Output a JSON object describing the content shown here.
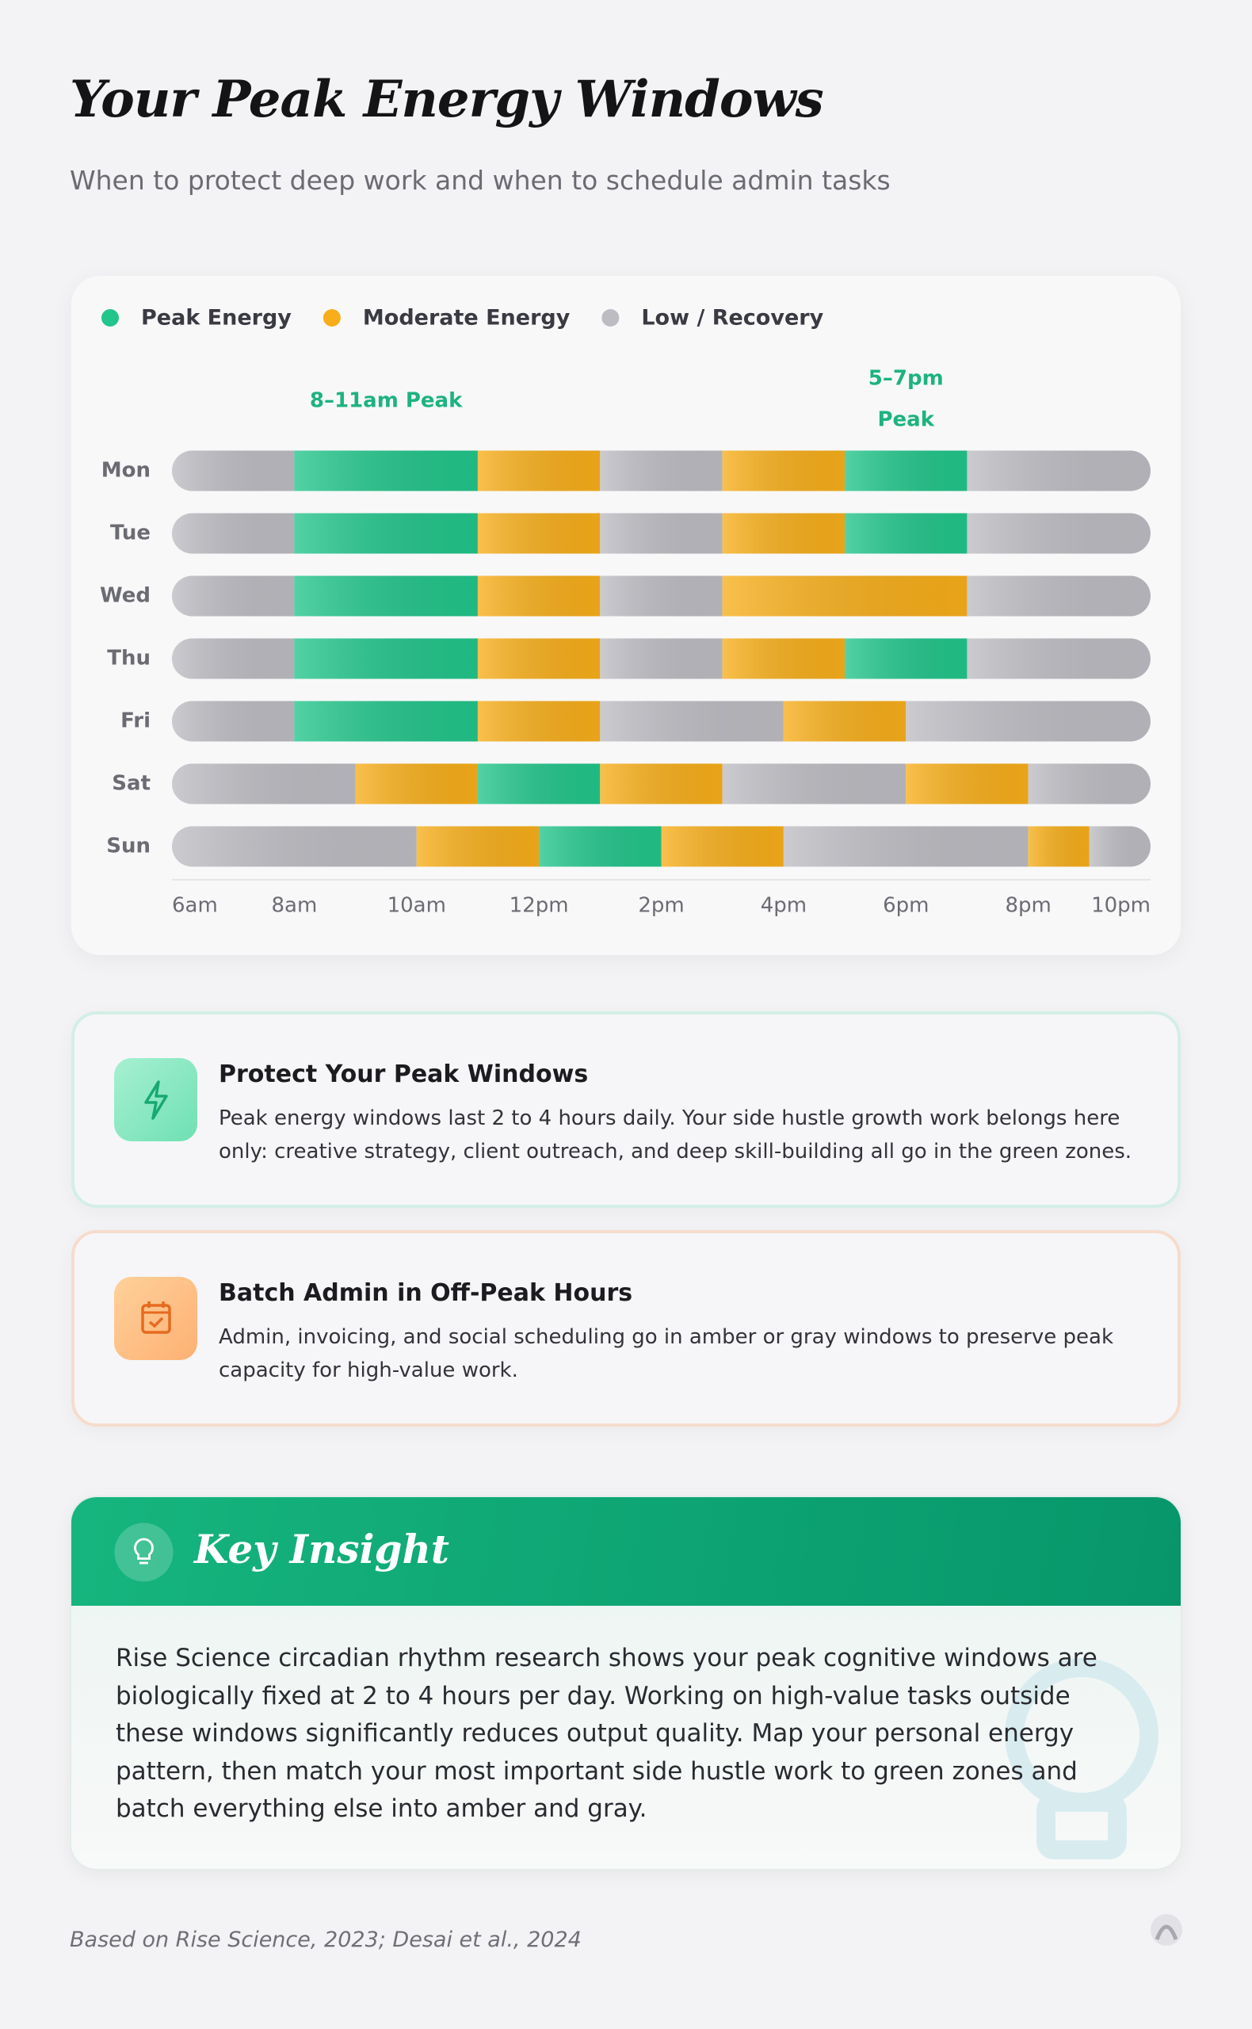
{
  "header": {
    "title": "Your Peak Energy Windows",
    "subtitle": "When to protect deep work and when to schedule admin tasks"
  },
  "chart_data": {
    "type": "timeline",
    "series": [
      {
        "name": "Peak Energy",
        "color": "#22c58b"
      },
      {
        "name": "Moderate Energy",
        "color": "#f7ae1a"
      },
      {
        "name": "Low / Recovery",
        "color": "#bcbcc2"
      }
    ],
    "categories": [
      "Mon",
      "Tue",
      "Wed",
      "Thu",
      "Fri",
      "Sat",
      "Sun"
    ],
    "segments": [
      [
        {
          "start": 6,
          "end": 8,
          "level": 2
        },
        {
          "start": 8,
          "end": 11,
          "level": 0
        },
        {
          "start": 11,
          "end": 13,
          "level": 1
        },
        {
          "start": 13,
          "end": 15,
          "level": 2
        },
        {
          "start": 15,
          "end": 17,
          "level": 1
        },
        {
          "start": 17,
          "end": 19,
          "level": 0
        },
        {
          "start": 19,
          "end": 22,
          "level": 2
        }
      ],
      [
        {
          "start": 6,
          "end": 8,
          "level": 2
        },
        {
          "start": 8,
          "end": 11,
          "level": 0
        },
        {
          "start": 11,
          "end": 13,
          "level": 1
        },
        {
          "start": 13,
          "end": 15,
          "level": 2
        },
        {
          "start": 15,
          "end": 17,
          "level": 1
        },
        {
          "start": 17,
          "end": 19,
          "level": 0
        },
        {
          "start": 19,
          "end": 22,
          "level": 2
        }
      ],
      [
        {
          "start": 6,
          "end": 8,
          "level": 2
        },
        {
          "start": 8,
          "end": 11,
          "level": 0
        },
        {
          "start": 11,
          "end": 13,
          "level": 1
        },
        {
          "start": 13,
          "end": 15,
          "level": 2
        },
        {
          "start": 15,
          "end": 19,
          "level": 1
        },
        {
          "start": 19,
          "end": 22,
          "level": 2
        }
      ],
      [
        {
          "start": 6,
          "end": 8,
          "level": 2
        },
        {
          "start": 8,
          "end": 11,
          "level": 0
        },
        {
          "start": 11,
          "end": 13,
          "level": 1
        },
        {
          "start": 13,
          "end": 15,
          "level": 2
        },
        {
          "start": 15,
          "end": 17,
          "level": 1
        },
        {
          "start": 17,
          "end": 19,
          "level": 0
        },
        {
          "start": 19,
          "end": 22,
          "level": 2
        }
      ],
      [
        {
          "start": 6,
          "end": 8,
          "level": 2
        },
        {
          "start": 8,
          "end": 11,
          "level": 0
        },
        {
          "start": 11,
          "end": 13,
          "level": 1
        },
        {
          "start": 13,
          "end": 16,
          "level": 2
        },
        {
          "start": 16,
          "end": 18,
          "level": 1
        },
        {
          "start": 18,
          "end": 22,
          "level": 2
        }
      ],
      [
        {
          "start": 6,
          "end": 9,
          "level": 2
        },
        {
          "start": 9,
          "end": 11,
          "level": 1
        },
        {
          "start": 11,
          "end": 13,
          "level": 0
        },
        {
          "start": 13,
          "end": 15,
          "level": 1
        },
        {
          "start": 15,
          "end": 18,
          "level": 2
        },
        {
          "start": 18,
          "end": 20,
          "level": 1
        },
        {
          "start": 20,
          "end": 22,
          "level": 2
        }
      ],
      [
        {
          "start": 6,
          "end": 10,
          "level": 2
        },
        {
          "start": 10,
          "end": 12,
          "level": 1
        },
        {
          "start": 12,
          "end": 14,
          "level": 0
        },
        {
          "start": 14,
          "end": 16,
          "level": 1
        },
        {
          "start": 16,
          "end": 20,
          "level": 2
        },
        {
          "start": 20,
          "end": 21,
          "level": 1
        },
        {
          "start": 21,
          "end": 22,
          "level": 2
        }
      ]
    ],
    "xlim": [
      6,
      22
    ],
    "xticks": [
      {
        "value": 6,
        "label": "6am"
      },
      {
        "value": 8,
        "label": "8am"
      },
      {
        "value": 10,
        "label": "10am"
      },
      {
        "value": 12,
        "label": "12pm"
      },
      {
        "value": 14,
        "label": "2pm"
      },
      {
        "value": 16,
        "label": "4pm"
      },
      {
        "value": 18,
        "label": "6pm"
      },
      {
        "value": 20,
        "label": "8pm"
      },
      {
        "value": 22,
        "label": "10pm"
      }
    ],
    "annotations": [
      {
        "lines": [
          "8–11am Peak"
        ],
        "x": 9.5
      },
      {
        "lines": [
          "5–7pm",
          "Peak"
        ],
        "x": 18
      }
    ]
  },
  "cards": [
    {
      "title": "Protect Your Peak Windows",
      "body": "Peak energy windows last 2 to 4 hours daily. Your side hustle growth work belongs here only: creative strategy, client outreach, and deep skill-building all go in the green zones."
    },
    {
      "title": "Batch Admin in Off-Peak Hours",
      "body": "Admin, invoicing, and social scheduling go in amber or gray windows to preserve peak capacity for high-value work."
    }
  ],
  "insight": {
    "title": "Key Insight",
    "body": "Rise Science circadian rhythm research shows your peak cognitive windows are biologically fixed at 2 to 4 hours per day. Working on high-value tasks outside these windows significantly reduces output quality. Map your personal energy pattern, then match your most important side hustle work to green zones and batch everything else into amber and gray."
  },
  "footer": {
    "source": "Based on Rise Science, 2023; Desai et al., 2024"
  }
}
